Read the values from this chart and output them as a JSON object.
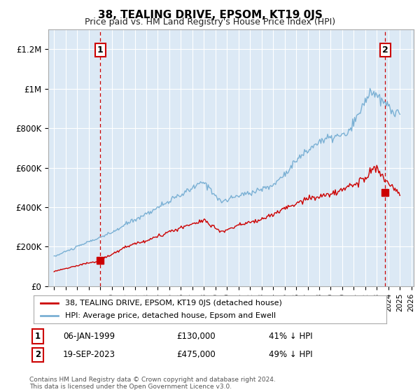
{
  "title": "38, TEALING DRIVE, EPSOM, KT19 0JS",
  "subtitle": "Price paid vs. HM Land Registry's House Price Index (HPI)",
  "ylabel_ticks": [
    "£0",
    "£200K",
    "£400K",
    "£600K",
    "£800K",
    "£1M",
    "£1.2M"
  ],
  "ytick_values": [
    0,
    200000,
    400000,
    600000,
    800000,
    1000000,
    1200000
  ],
  "ylim": [
    0,
    1300000
  ],
  "xlim_start": 1994.5,
  "xlim_end": 2026.2,
  "red_line_color": "#cc0000",
  "blue_line_color": "#7ab0d4",
  "dashed_red_color": "#cc0000",
  "background_color": "#ffffff",
  "chart_bg_color": "#dce9f5",
  "grid_color": "#ffffff",
  "transaction1_x": 1999.02,
  "transaction1_y": 130000,
  "transaction1_label": "1",
  "transaction1_date": "06-JAN-1999",
  "transaction1_price": "£130,000",
  "transaction1_hpi": "41% ↓ HPI",
  "transaction2_x": 2023.72,
  "transaction2_y": 475000,
  "transaction2_label": "2",
  "transaction2_date": "19-SEP-2023",
  "transaction2_price": "£475,000",
  "transaction2_hpi": "49% ↓ HPI",
  "legend_red_label": "38, TEALING DRIVE, EPSOM, KT19 0JS (detached house)",
  "legend_blue_label": "HPI: Average price, detached house, Epsom and Ewell",
  "footer": "Contains HM Land Registry data © Crown copyright and database right 2024.\nThis data is licensed under the Open Government Licence v3.0."
}
